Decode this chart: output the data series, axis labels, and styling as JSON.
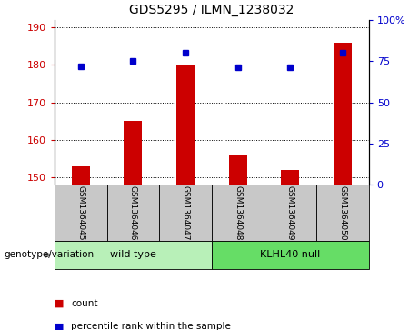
{
  "title": "GDS5295 / ILMN_1238032",
  "samples": [
    "GSM1364045",
    "GSM1364046",
    "GSM1364047",
    "GSM1364048",
    "GSM1364049",
    "GSM1364050"
  ],
  "counts": [
    153,
    165,
    180,
    156,
    152,
    186
  ],
  "percentiles": [
    72,
    75,
    80,
    71,
    71,
    80
  ],
  "ylim_left": [
    148,
    192
  ],
  "ylim_right": [
    0,
    100
  ],
  "yticks_left": [
    150,
    160,
    170,
    180,
    190
  ],
  "yticks_right": [
    0,
    25,
    50,
    75,
    100
  ],
  "ytick_labels_right": [
    "0",
    "25",
    "50",
    "75",
    "100%"
  ],
  "bar_color": "#cc0000",
  "dot_color": "#0000cc",
  "groups": [
    {
      "label": "wild type",
      "indices": [
        0,
        1,
        2
      ]
    },
    {
      "label": "KLHL40 null",
      "indices": [
        3,
        4,
        5
      ]
    }
  ],
  "group_color_wt": "#b8f0b8",
  "group_color_kl": "#66dd66",
  "label_box_color": "#c8c8c8",
  "genotype_label": "genotype/variation",
  "legend_count": "count",
  "legend_percentile": "percentile rank within the sample",
  "title_fontsize": 10,
  "tick_fontsize": 8,
  "sample_fontsize": 6.5,
  "group_fontsize": 8,
  "legend_fontsize": 7.5
}
